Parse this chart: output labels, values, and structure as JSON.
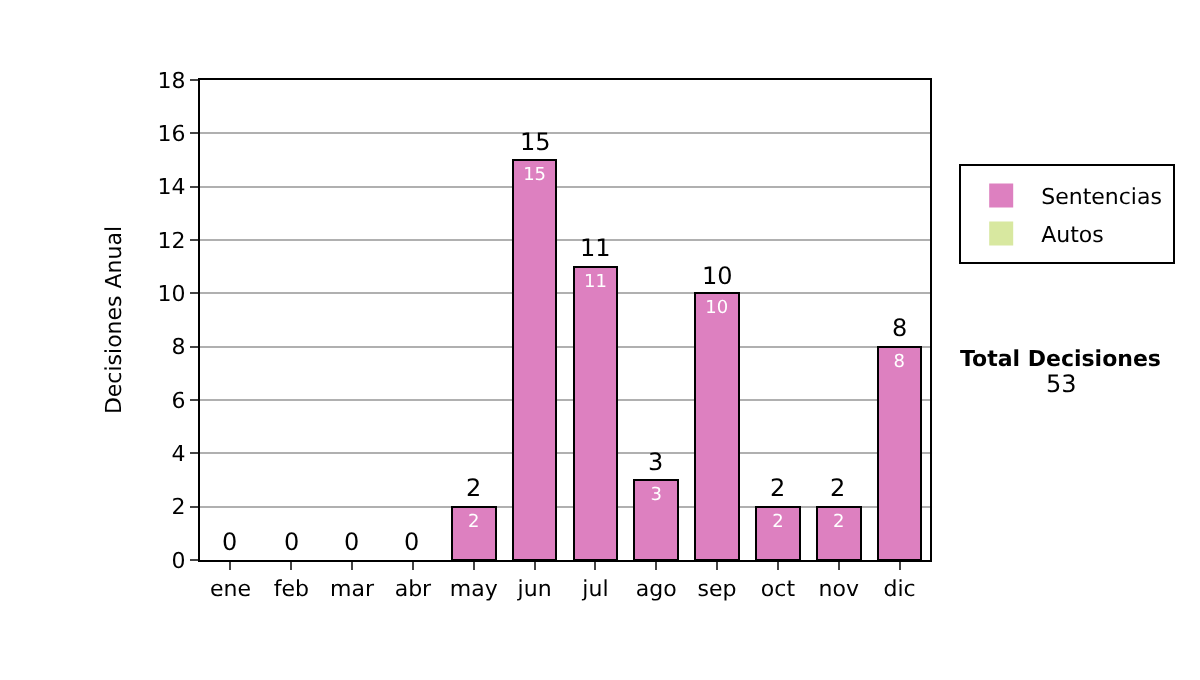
{
  "chart_data": {
    "type": "bar",
    "ylabel": "Decisiones Anual",
    "categories": [
      "ene",
      "feb",
      "mar",
      "abr",
      "may",
      "jun",
      "jul",
      "ago",
      "sep",
      "oct",
      "nov",
      "dic"
    ],
    "series": [
      {
        "name": "Sentencias",
        "color": "#dd80c0",
        "values": [
          0,
          0,
          0,
          0,
          2,
          15,
          11,
          3,
          10,
          2,
          2,
          8
        ],
        "value_labels": [
          null,
          null,
          null,
          null,
          "2",
          "15",
          "11",
          "3",
          "10",
          "2",
          "2",
          "8"
        ]
      },
      {
        "name": "Autos",
        "color": "#d8e8a0",
        "values": [
          0,
          0,
          0,
          0,
          0,
          0,
          0,
          0,
          0,
          0,
          0,
          0
        ]
      }
    ],
    "stacked": true,
    "totals": [
      "0",
      "0",
      "0",
      "0",
      "2",
      "15",
      "11",
      "3",
      "10",
      "2",
      "2",
      "8"
    ],
    "ylim": [
      0,
      18
    ],
    "yticks": [
      0,
      2,
      4,
      6,
      8,
      10,
      12,
      14,
      16,
      18
    ],
    "grid": "y",
    "legend": "right",
    "annotations": [
      "Total Decisiones",
      "53"
    ]
  }
}
